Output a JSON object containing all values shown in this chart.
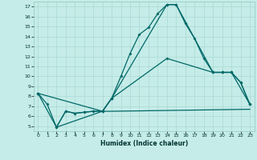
{
  "xlabel": "Humidex (Indice chaleur)",
  "background_color": "#c5ece8",
  "grid_color": "#aad8d3",
  "line_color": "#006868",
  "ylim": [
    4.5,
    17.5
  ],
  "xlim": [
    -0.5,
    23.5
  ],
  "yticks": [
    5,
    6,
    7,
    8,
    9,
    10,
    11,
    12,
    13,
    14,
    15,
    16,
    17
  ],
  "xticks": [
    0,
    1,
    2,
    3,
    4,
    5,
    6,
    7,
    8,
    9,
    10,
    11,
    12,
    13,
    14,
    15,
    16,
    17,
    18,
    19,
    20,
    21,
    22,
    23
  ],
  "series": [
    {
      "x": [
        0,
        1,
        2,
        3,
        4,
        5,
        6,
        7,
        8,
        9,
        10,
        11,
        12,
        13,
        14,
        15,
        16,
        17,
        18,
        19,
        20,
        21,
        22,
        23
      ],
      "y": [
        8.3,
        7.2,
        4.9,
        6.5,
        6.3,
        6.4,
        6.5,
        6.5,
        7.8,
        10.0,
        12.3,
        14.2,
        14.9,
        16.3,
        17.2,
        17.2,
        15.3,
        13.8,
        11.8,
        10.4,
        10.4,
        10.4,
        9.4,
        7.2
      ],
      "markers": true
    },
    {
      "x": [
        0,
        2,
        3,
        4,
        5,
        6,
        7,
        8,
        14,
        15,
        19,
        20,
        21,
        22,
        23
      ],
      "y": [
        8.3,
        4.9,
        6.5,
        6.3,
        6.4,
        6.5,
        6.5,
        7.8,
        17.2,
        17.2,
        10.4,
        10.4,
        10.4,
        9.4,
        7.2
      ],
      "markers": true
    },
    {
      "x": [
        2,
        7,
        8,
        23
      ],
      "y": [
        4.9,
        6.5,
        6.5,
        6.7
      ],
      "markers": false
    },
    {
      "x": [
        0,
        7,
        8,
        14,
        19,
        20,
        21,
        23
      ],
      "y": [
        8.3,
        6.5,
        7.8,
        11.8,
        10.4,
        10.4,
        10.4,
        7.2
      ],
      "markers": true
    }
  ]
}
